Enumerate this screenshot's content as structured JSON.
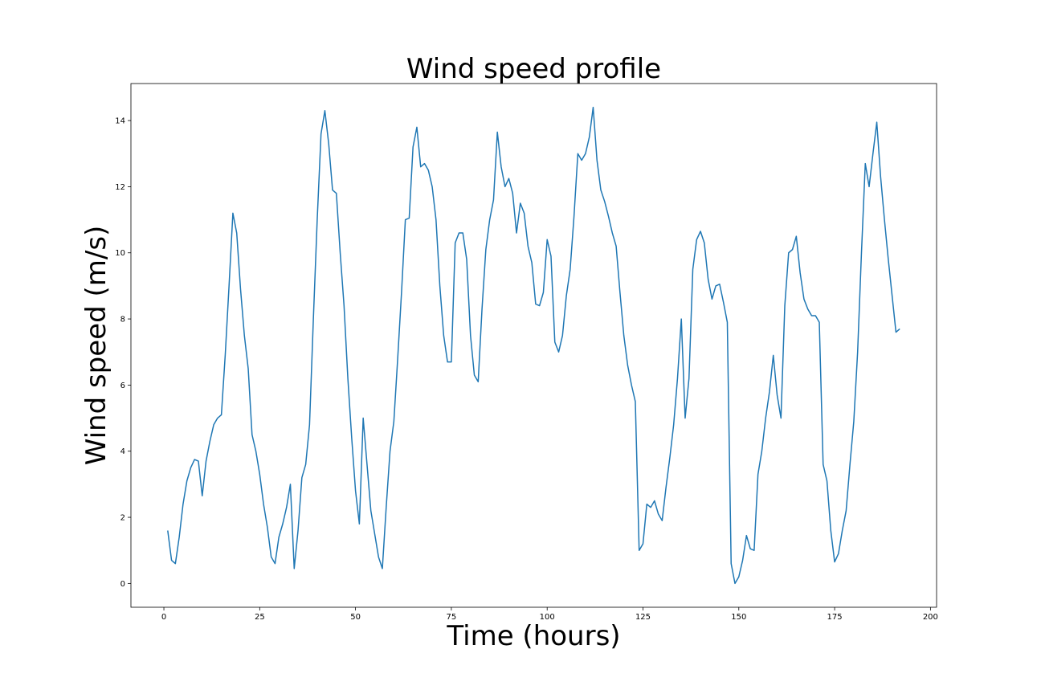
{
  "chart_data": {
    "type": "line",
    "title": "Wind speed profile",
    "xlabel": "Time (hours)",
    "ylabel": "Wind speed (m/s)",
    "xlim": [
      -8.6,
      201.6
    ],
    "ylim": [
      -0.72,
      15.12
    ],
    "xticks": [
      0,
      25,
      50,
      75,
      100,
      125,
      150,
      175,
      200
    ],
    "yticks": [
      0,
      2,
      4,
      6,
      8,
      10,
      12,
      14
    ],
    "grid": false,
    "legend": "none",
    "series": [
      {
        "color": "#1f77b4",
        "x": [
          1,
          2,
          3,
          4,
          5,
          6,
          7,
          8,
          9,
          10,
          11,
          12,
          13,
          14,
          15,
          16,
          17,
          18,
          19,
          20,
          21,
          22,
          23,
          24,
          25,
          26,
          27,
          28,
          29,
          30,
          31,
          32,
          33,
          34,
          35,
          36,
          37,
          38,
          39,
          40,
          41,
          42,
          43,
          44,
          45,
          46,
          47,
          48,
          49,
          50,
          51,
          52,
          53,
          54,
          55,
          56,
          57,
          58,
          59,
          60,
          61,
          62,
          63,
          64,
          65,
          66,
          67,
          68,
          69,
          70,
          71,
          72,
          73,
          74,
          75,
          76,
          77,
          78,
          79,
          80,
          81,
          82,
          83,
          84,
          85,
          86,
          87,
          88,
          89,
          90,
          91,
          92,
          93,
          94,
          95,
          96,
          97,
          98,
          99,
          100,
          101,
          102,
          103,
          104,
          105,
          106,
          107,
          108,
          109,
          110,
          111,
          112,
          113,
          114,
          115,
          116,
          117,
          118,
          119,
          120,
          121,
          122,
          123,
          124,
          125,
          126,
          127,
          128,
          129,
          130,
          131,
          132,
          133,
          134,
          135,
          136,
          137,
          138,
          139,
          140,
          141,
          142,
          143,
          144,
          145,
          146,
          147,
          148,
          149,
          150,
          151,
          152,
          153,
          154,
          155,
          156,
          157,
          158,
          159,
          160,
          161,
          162,
          163,
          164,
          165,
          166,
          167,
          168,
          169,
          170,
          171,
          172,
          173,
          174,
          175,
          176,
          177,
          178,
          179,
          180,
          181,
          182,
          183,
          184,
          185,
          186,
          187,
          188,
          189,
          190,
          191,
          192
        ],
        "y": [
          1.6,
          0.7,
          0.6,
          1.4,
          2.4,
          3.1,
          3.5,
          3.75,
          3.7,
          2.65,
          3.7,
          4.3,
          4.8,
          5.0,
          5.1,
          6.9,
          9.0,
          11.2,
          10.6,
          8.9,
          7.5,
          6.5,
          4.5,
          4.0,
          3.3,
          2.4,
          1.7,
          0.8,
          0.6,
          1.4,
          1.8,
          2.3,
          3.0,
          0.45,
          1.6,
          3.2,
          3.6,
          4.8,
          8.0,
          11.0,
          13.6,
          14.3,
          13.3,
          11.9,
          11.8,
          10.0,
          8.4,
          6.2,
          4.4,
          2.8,
          1.8,
          5.0,
          3.6,
          2.2,
          1.5,
          0.8,
          0.45,
          2.3,
          4.0,
          4.9,
          6.8,
          8.8,
          11.0,
          11.05,
          13.2,
          13.8,
          12.6,
          12.7,
          12.5,
          12.0,
          11.0,
          9.0,
          7.5,
          6.7,
          6.7,
          10.3,
          10.6,
          10.6,
          9.8,
          7.5,
          6.3,
          6.1,
          8.3,
          10.1,
          11.0,
          11.6,
          13.65,
          12.6,
          12.0,
          12.25,
          11.8,
          10.6,
          11.5,
          11.2,
          10.2,
          9.7,
          8.45,
          8.4,
          8.8,
          10.4,
          9.9,
          7.3,
          7.0,
          7.5,
          8.7,
          9.5,
          11.1,
          13.0,
          12.8,
          13.0,
          13.5,
          14.4,
          12.8,
          11.9,
          11.55,
          11.1,
          10.6,
          10.2,
          8.8,
          7.5,
          6.6,
          6.0,
          5.5,
          1.0,
          1.2,
          2.4,
          2.3,
          2.5,
          2.1,
          1.9,
          2.9,
          3.8,
          4.8,
          6.2,
          8.0,
          5.0,
          6.2,
          9.5,
          10.4,
          10.65,
          10.3,
          9.2,
          8.6,
          9.0,
          9.05,
          8.5,
          7.9,
          0.6,
          0.0,
          0.2,
          0.7,
          1.45,
          1.05,
          1.0,
          3.3,
          4.0,
          5.0,
          5.8,
          6.9,
          5.7,
          5.0,
          8.4,
          10.0,
          10.1,
          10.5,
          9.4,
          8.6,
          8.3,
          8.1,
          8.1,
          7.9,
          3.6,
          3.1,
          1.6,
          0.65,
          0.9,
          1.6,
          2.2,
          3.6,
          4.9,
          7.0,
          10.0,
          12.7,
          12.0,
          13.0,
          13.95,
          12.3,
          11.0,
          9.8,
          8.7,
          7.6,
          7.7
        ]
      }
    ]
  }
}
